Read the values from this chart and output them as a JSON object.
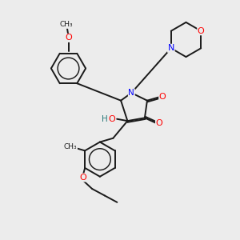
{
  "bg": "#ececec",
  "bc": "#1a1a1a",
  "figsize": [
    3.0,
    3.0
  ],
  "dpi": 100,
  "xlim": [
    0,
    10
  ],
  "ylim": [
    0,
    10
  ]
}
